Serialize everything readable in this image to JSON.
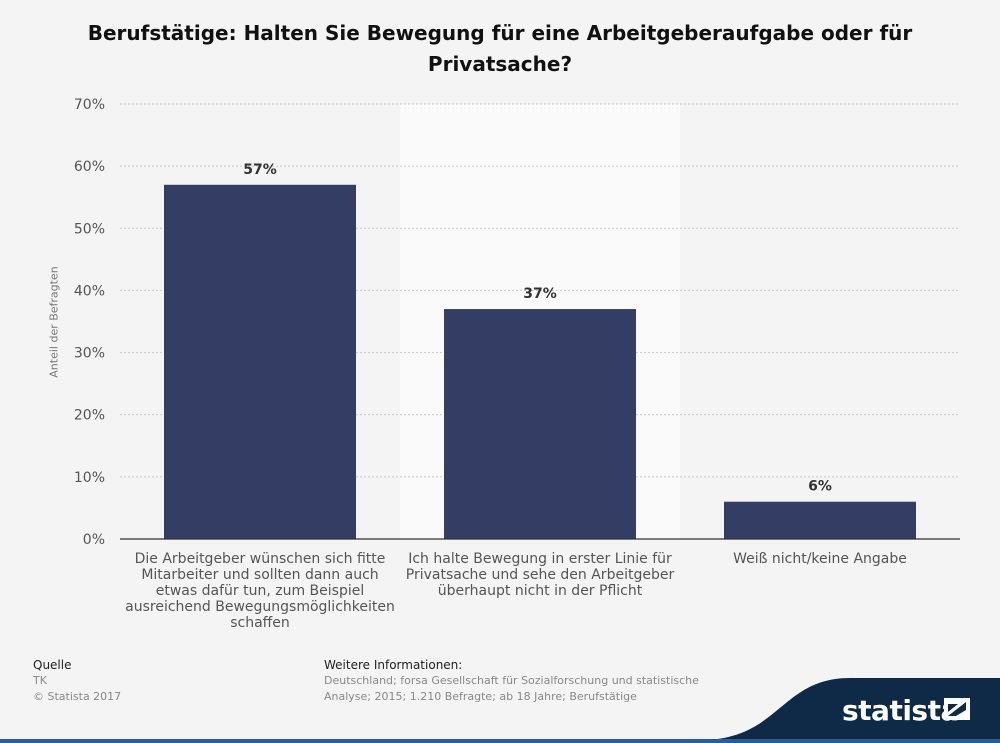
{
  "title": "Berufstätige: Halten Sie Bewegung für eine Arbeitgeberaufgabe oder für Privatsache?",
  "chart_data": {
    "type": "bar",
    "categories": [
      "Die Arbeitgeber wünschen sich fitte Mitarbeiter und sollten dann auch etwas dafür tun, zum Beispiel ausreichend Bewegungsmöglichkeiten schaffen",
      "Ich halte Bewegung in erster Linie für Privatsache und sehe den Arbeitgeber überhaupt nicht in der Pflicht",
      "Weiß nicht/keine Angabe"
    ],
    "values": [
      57,
      37,
      6
    ],
    "value_labels": [
      "57%",
      "37%",
      "6%"
    ],
    "ylabel": "Anteil der Befragten",
    "xlabel": "",
    "ylim": [
      0,
      70
    ],
    "yticks": [
      "0%",
      "10%",
      "20%",
      "30%",
      "40%",
      "50%",
      "60%",
      "70%"
    ],
    "grid": true,
    "bar_color": "#343d63",
    "highlight_band_color": "#fafafa"
  },
  "footer": {
    "source_head": "Quelle",
    "source": "TK",
    "copyright": "© Statista 2017",
    "info_head": "Weitere Informationen:",
    "info_line1": "Deutschland; forsa Gesellschaft für Sozialforschung und statistische",
    "info_line2": "Analyse; 2015; 1.210 Befragte; ab 18 Jahre; Berufstätige"
  },
  "brand": {
    "name": "statista",
    "color": "#0e2a47"
  }
}
